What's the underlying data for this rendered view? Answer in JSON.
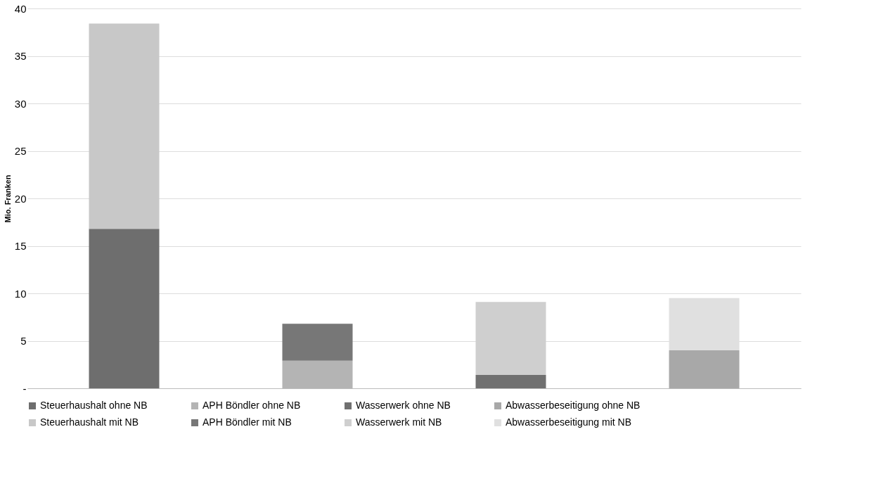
{
  "chart_data": {
    "type": "bar",
    "ylabel": "Mio. Franken",
    "categories": [
      null,
      null,
      null,
      null
    ],
    "stacked": true,
    "series": [
      {
        "name": "Steuerhaushalt ohne NB",
        "color": "#6e6e6e",
        "values": [
          16.8,
          null,
          null,
          null
        ]
      },
      {
        "name": "APH Böndler ohne NB",
        "color": "#b4b4b4",
        "values": [
          null,
          2.9,
          null,
          null
        ]
      },
      {
        "name": "Wasserwerk ohne NB",
        "color": "#707070",
        "values": [
          null,
          null,
          1.4,
          null
        ]
      },
      {
        "name": "Abwasserbeseitigung ohne NB",
        "color": "#a8a8a8",
        "values": [
          null,
          null,
          null,
          4.0
        ]
      },
      {
        "name": "Steuerhaushalt mit NB",
        "color": "#c8c8c8",
        "values": [
          21.6,
          null,
          null,
          null
        ]
      },
      {
        "name": "APH Böndler mit NB",
        "color": "#777777",
        "values": [
          null,
          3.9,
          null,
          null
        ]
      },
      {
        "name": "Wasserwerk mit NB",
        "color": "#cfcfcf",
        "values": [
          null,
          null,
          7.7,
          null
        ]
      },
      {
        "name": "Abwasserbeseitigung mit NB",
        "color": "#e0e0e0",
        "values": [
          null,
          null,
          null,
          5.5
        ]
      }
    ],
    "ylim": [
      0,
      40
    ],
    "yticks": [
      {
        "value": 0,
        "label": "-"
      },
      5,
      10,
      15,
      20,
      25,
      30,
      35,
      40
    ],
    "grid": "y",
    "legend": "bottom",
    "tick_labels": "y"
  }
}
